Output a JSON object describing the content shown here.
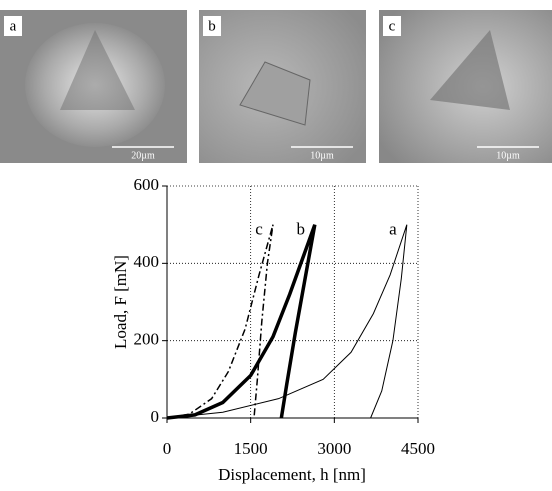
{
  "panels": [
    {
      "label": "a",
      "scale": "20µm"
    },
    {
      "label": "b",
      "scale": "10µm"
    },
    {
      "label": "c",
      "scale": "10µm"
    }
  ],
  "chart_data": {
    "type": "line",
    "x_label": "Displacement, h [nm]",
    "y_label": "Load, F [mN]",
    "xlim": [
      0,
      4500
    ],
    "ylim": [
      0,
      600
    ],
    "xticks": [
      0,
      1500,
      3000,
      4500
    ],
    "yticks": [
      0,
      200,
      400,
      600
    ],
    "grid": true,
    "series": [
      {
        "name": "c",
        "color": "#000000",
        "dash": "7 3 2 3",
        "width": 1.5,
        "x": [
          0,
          400,
          800,
          1100,
          1400,
          1650,
          1900,
          1800,
          1700,
          1620,
          1560
        ],
        "values": [
          0,
          10,
          50,
          120,
          230,
          370,
          500,
          400,
          250,
          100,
          0
        ]
      },
      {
        "name": "b",
        "color": "#000000",
        "dash": "none",
        "width": 3.5,
        "x": [
          0,
          500,
          1000,
          1500,
          1900,
          2200,
          2450,
          2650,
          2500,
          2300,
          2150,
          2050
        ],
        "values": [
          0,
          8,
          40,
          110,
          210,
          320,
          420,
          500,
          380,
          220,
          90,
          0
        ]
      },
      {
        "name": "a",
        "color": "#000000",
        "dash": "none",
        "width": 1,
        "x": [
          0,
          1000,
          2000,
          2800,
          3300,
          3700,
          4000,
          4300,
          4200,
          4050,
          3850,
          3650
        ],
        "values": [
          0,
          15,
          50,
          100,
          170,
          270,
          370,
          500,
          360,
          200,
          70,
          0
        ]
      }
    ]
  }
}
